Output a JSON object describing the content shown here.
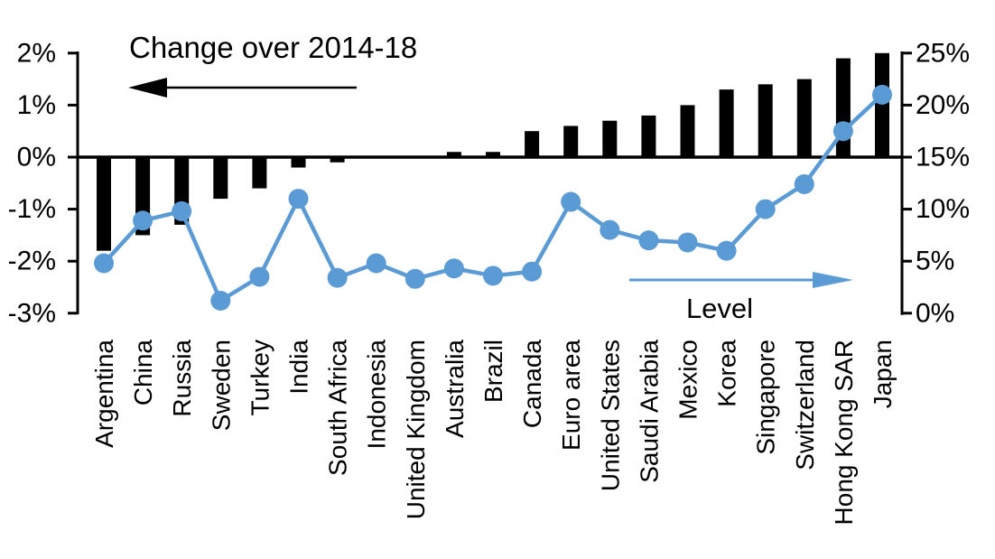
{
  "chart_data": {
    "type": "combo-bar-line",
    "categories": [
      "Argentina",
      "China",
      "Russia",
      "Sweden",
      "Turkey",
      "India",
      "South Africa",
      "Indonesia",
      "United Kingdom",
      "Australia",
      "Brazil",
      "Canada",
      "Euro area",
      "United States",
      "Saudi Arabia",
      "Mexico",
      "Korea",
      "Singapore",
      "Switzerland",
      "Hong Kong SAR",
      "Japan"
    ],
    "series": [
      {
        "name": "Change over 2014-18",
        "type": "bar",
        "axis": "left",
        "color": "#000000",
        "values": [
          -1.8,
          -1.5,
          -1.3,
          -0.8,
          -0.6,
          -0.2,
          -0.1,
          0.0,
          0.0,
          0.1,
          0.1,
          0.5,
          0.6,
          0.7,
          0.8,
          1.0,
          1.3,
          1.4,
          1.5,
          1.9,
          2.0
        ]
      },
      {
        "name": "Level",
        "type": "line",
        "axis": "right",
        "color": "#5B9BD5",
        "values": [
          4.8,
          8.9,
          9.8,
          1.2,
          3.5,
          11.0,
          3.4,
          4.8,
          3.3,
          4.3,
          3.6,
          4.0,
          10.7,
          8.0,
          7.0,
          6.8,
          6.0,
          10.0,
          12.4,
          17.5,
          21.0
        ]
      }
    ],
    "left_axis": {
      "tick_labels": [
        "2%",
        "1%",
        "0%",
        "-1%",
        "-2%",
        "-3%"
      ],
      "tick_values": [
        2,
        1,
        0,
        -1,
        -2,
        -3
      ],
      "min": -3,
      "max": 2
    },
    "right_axis": {
      "tick_labels": [
        "25%",
        "20%",
        "15%",
        "10%",
        "5%",
        "0%"
      ],
      "tick_values": [
        25,
        20,
        15,
        10,
        5,
        0
      ],
      "min": 0,
      "max": 25
    },
    "annotations": [
      {
        "id": "change-annotation",
        "text": "Change over 2014-18",
        "arrow_direction": "left",
        "text_color": "#000000",
        "arrow_color": "#000000"
      },
      {
        "id": "level-annotation",
        "text": "Level",
        "arrow_direction": "right",
        "text_color": "#000000",
        "arrow_color": "#5B9BD5"
      }
    ],
    "grid": "off",
    "legend": "none",
    "background": "#ffffff"
  }
}
